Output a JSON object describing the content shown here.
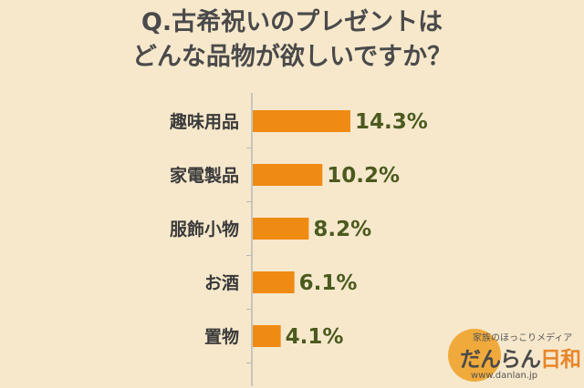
{
  "title": {
    "line1": "Q.古希祝いのプレゼントは",
    "line2": "どんな品物が欲しいですか？"
  },
  "chart_data": {
    "type": "bar",
    "orientation": "horizontal",
    "categories": [
      "趣味用品",
      "家電製品",
      "服飾小物",
      "お酒",
      "置物"
    ],
    "values": [
      14.3,
      10.2,
      8.2,
      6.1,
      4.1
    ],
    "value_labels": [
      "14.3%",
      "10.2%",
      "8.2%",
      "6.1%",
      "4.1%"
    ],
    "unit": "%",
    "xlim": [
      0,
      100
    ],
    "grid": false,
    "bar_color": "#ef8a12",
    "axis_color": "#b8b8b8"
  },
  "logo": {
    "tagline": "家族のほっこりメディア",
    "name_main": "だんらん",
    "name_accent": "日和",
    "url": "www.danlan.jp",
    "circle_color": "#f0aa3c"
  }
}
